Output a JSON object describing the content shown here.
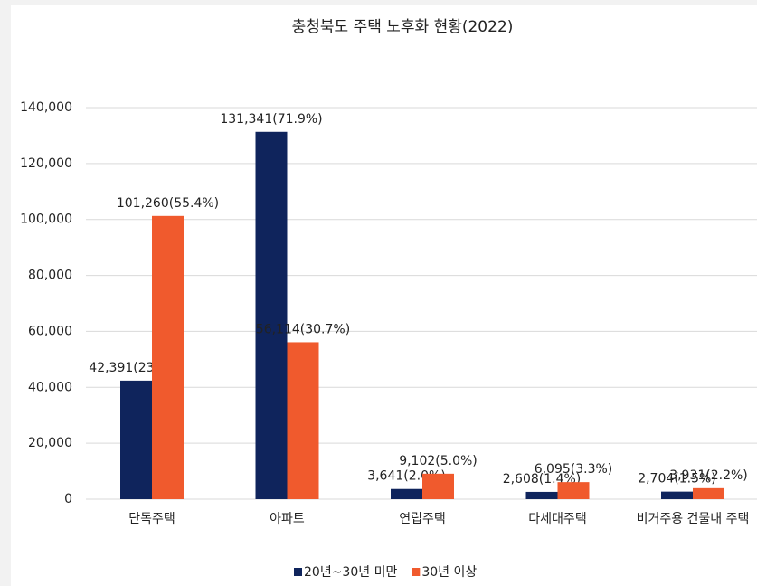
{
  "chart_data": {
    "type": "bar",
    "title": "충청북도 주택 노후화 현황(2022)",
    "categories": [
      "단독주택",
      "아파트",
      "연립주택",
      "다세대주택",
      "비거주용 건물내 주택"
    ],
    "series": [
      {
        "name": "20년~30년 미만",
        "color": "#0f245c",
        "values": [
          42391,
          131341,
          3641,
          2608,
          2704
        ],
        "value_labels": [
          "42,391(23.2%)",
          "131,341(71.9%)",
          "3,641(2.0%)",
          "2,608(1.4%)",
          "2,704(1.5%)"
        ]
      },
      {
        "name": "30년 이상",
        "color": "#f05a2d",
        "values": [
          101260,
          56114,
          9102,
          6095,
          3931
        ],
        "value_labels": [
          "101,260(55.4%)",
          "56,114(30.7%)",
          "9,102(5.0%)",
          "6,095(3.3%)",
          "3,931(2.2%)"
        ]
      }
    ],
    "ylim": [
      0,
      140000
    ],
    "yticks": [
      0,
      {
        "value": 20000,
        "label": "20,000"
      },
      {
        "value": 40000,
        "label": "40,000"
      },
      {
        "value": 60000,
        "label": "60,000"
      },
      {
        "value": 80000,
        "label": "80,000"
      },
      {
        "value": 100000,
        "label": "100,000"
      },
      {
        "value": 120000,
        "label": "120,000"
      },
      {
        "value": 140000,
        "label": "140,000"
      }
    ],
    "grid": true,
    "legend": "bottom"
  }
}
